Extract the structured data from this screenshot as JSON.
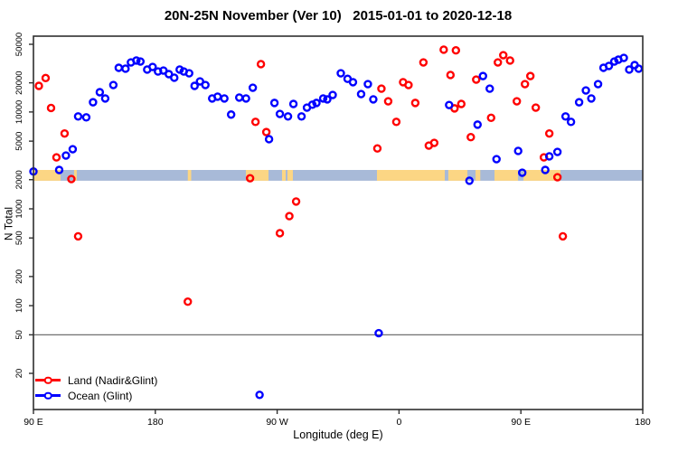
{
  "chart_data": {
    "type": "scatter",
    "title": "20N-25N November (Ver 10)   2015-01-01 to 2020-12-18",
    "xlabel": "Longitude (deg E)",
    "ylabel": "N Total",
    "x_axis": {
      "span_deg": 450,
      "ticks": [
        {
          "deg": 0,
          "label": "90 E"
        },
        {
          "deg": 90,
          "label": "180"
        },
        {
          "deg": 180,
          "label": "90 W"
        },
        {
          "deg": 270,
          "label": "0"
        },
        {
          "deg": 360,
          "label": "90 E"
        },
        {
          "deg": 450,
          "label": "180"
        }
      ]
    },
    "y_axis": {
      "scale": "log",
      "top_value": 50000,
      "bottom_value": 20,
      "ticks": [
        50000,
        20000,
        10000,
        5000,
        2000,
        1000,
        500,
        200,
        100,
        50,
        20
      ]
    },
    "reference_line": {
      "n": 50,
      "color": "#707070"
    },
    "map_band": {
      "n_top": 2520,
      "n_bottom": 1950,
      "ocean_color": "#a8bad8",
      "land_color": "#fcd684",
      "land_segments_deg": [
        [
          0,
          20
        ],
        [
          30,
          32
        ],
        [
          114,
          116.5
        ],
        [
          156.9,
          173.6
        ],
        [
          183.6,
          186.3
        ],
        [
          187.6,
          191.6
        ],
        [
          253.7,
          303.8
        ],
        [
          306.4,
          320.5
        ],
        [
          326.5,
          330
        ],
        [
          340.5,
          357.9
        ],
        [
          361.9,
          389.2
        ]
      ]
    },
    "series": [
      {
        "name": "Land (Nadir&Glint)",
        "color": "#ff0000",
        "points": [
          [
            4,
            18600
          ],
          [
            9,
            22400
          ],
          [
            13,
            11000
          ],
          [
            23,
            6000
          ],
          [
            17,
            3400
          ],
          [
            28,
            2030
          ],
          [
            33,
            520
          ],
          [
            168,
            31200
          ],
          [
            164,
            7900
          ],
          [
            172,
            6200
          ],
          [
            160,
            2070
          ],
          [
            182,
            560
          ],
          [
            189,
            840
          ],
          [
            194,
            1190
          ],
          [
            114,
            110
          ],
          [
            254,
            4200
          ],
          [
            257,
            17400
          ],
          [
            262,
            12900
          ],
          [
            268,
            7900
          ],
          [
            273,
            20300
          ],
          [
            277,
            19000
          ],
          [
            282,
            12400
          ],
          [
            288,
            32500
          ],
          [
            292,
            4500
          ],
          [
            296,
            4800
          ],
          [
            303,
            44000
          ],
          [
            312,
            43300
          ],
          [
            308,
            24100
          ],
          [
            311,
            10900
          ],
          [
            316,
            12100
          ],
          [
            323,
            5500
          ],
          [
            327,
            21600
          ],
          [
            338,
            8700
          ],
          [
            343,
            32500
          ],
          [
            347,
            38600
          ],
          [
            352,
            34000
          ],
          [
            357,
            12900
          ],
          [
            363,
            19400
          ],
          [
            367,
            23500
          ],
          [
            371,
            11100
          ],
          [
            377,
            3400
          ],
          [
            381,
            6000
          ],
          [
            387,
            2120
          ],
          [
            391,
            520
          ]
        ]
      },
      {
        "name": "Ocean (Glint)",
        "color": "#0000ff",
        "points": [
          [
            0,
            2430
          ],
          [
            19,
            2520
          ],
          [
            24,
            3550
          ],
          [
            29,
            4130
          ],
          [
            33,
            9000
          ],
          [
            39,
            8800
          ],
          [
            44,
            12600
          ],
          [
            49,
            16000
          ],
          [
            53,
            13800
          ],
          [
            59,
            19000
          ],
          [
            63,
            28600
          ],
          [
            68,
            28000
          ],
          [
            72,
            32500
          ],
          [
            76,
            34000
          ],
          [
            79,
            33200
          ],
          [
            84,
            27400
          ],
          [
            88,
            29200
          ],
          [
            92,
            26200
          ],
          [
            96,
            26800
          ],
          [
            100,
            24600
          ],
          [
            104,
            22600
          ],
          [
            108,
            27400
          ],
          [
            111,
            26200
          ],
          [
            115,
            25100
          ],
          [
            119,
            18600
          ],
          [
            123,
            20700
          ],
          [
            127,
            19000
          ],
          [
            132,
            13800
          ],
          [
            136,
            14400
          ],
          [
            141,
            13800
          ],
          [
            146,
            9400
          ],
          [
            152,
            14100
          ],
          [
            157,
            13800
          ],
          [
            162,
            17800
          ],
          [
            174,
            5240
          ],
          [
            178,
            12400
          ],
          [
            182,
            9550
          ],
          [
            188,
            9000
          ],
          [
            192,
            12100
          ],
          [
            198,
            9000
          ],
          [
            202,
            11100
          ],
          [
            206,
            11900
          ],
          [
            209,
            12400
          ],
          [
            214,
            13800
          ],
          [
            217,
            13500
          ],
          [
            221,
            15000
          ],
          [
            227,
            25100
          ],
          [
            232,
            22000
          ],
          [
            236,
            20300
          ],
          [
            242,
            15300
          ],
          [
            247,
            19400
          ],
          [
            251,
            13500
          ],
          [
            255,
            52
          ],
          [
            167,
            12
          ],
          [
            307,
            11800
          ],
          [
            328,
            7400
          ],
          [
            332,
            23500
          ],
          [
            337,
            17400
          ],
          [
            342,
            3260
          ],
          [
            322,
            1950
          ],
          [
            358,
            3960
          ],
          [
            361,
            2360
          ],
          [
            378,
            2520
          ],
          [
            381,
            3480
          ],
          [
            387,
            3870
          ],
          [
            393,
            9000
          ],
          [
            397,
            7900
          ],
          [
            403,
            12600
          ],
          [
            408,
            16700
          ],
          [
            412,
            13800
          ],
          [
            417,
            19400
          ],
          [
            421,
            28600
          ],
          [
            425,
            29900
          ],
          [
            429,
            33200
          ],
          [
            432,
            34700
          ],
          [
            436,
            36200
          ],
          [
            440,
            27400
          ],
          [
            444,
            30500
          ],
          [
            447,
            28000
          ]
        ]
      }
    ],
    "legend": {
      "position": "bottom-left"
    }
  }
}
